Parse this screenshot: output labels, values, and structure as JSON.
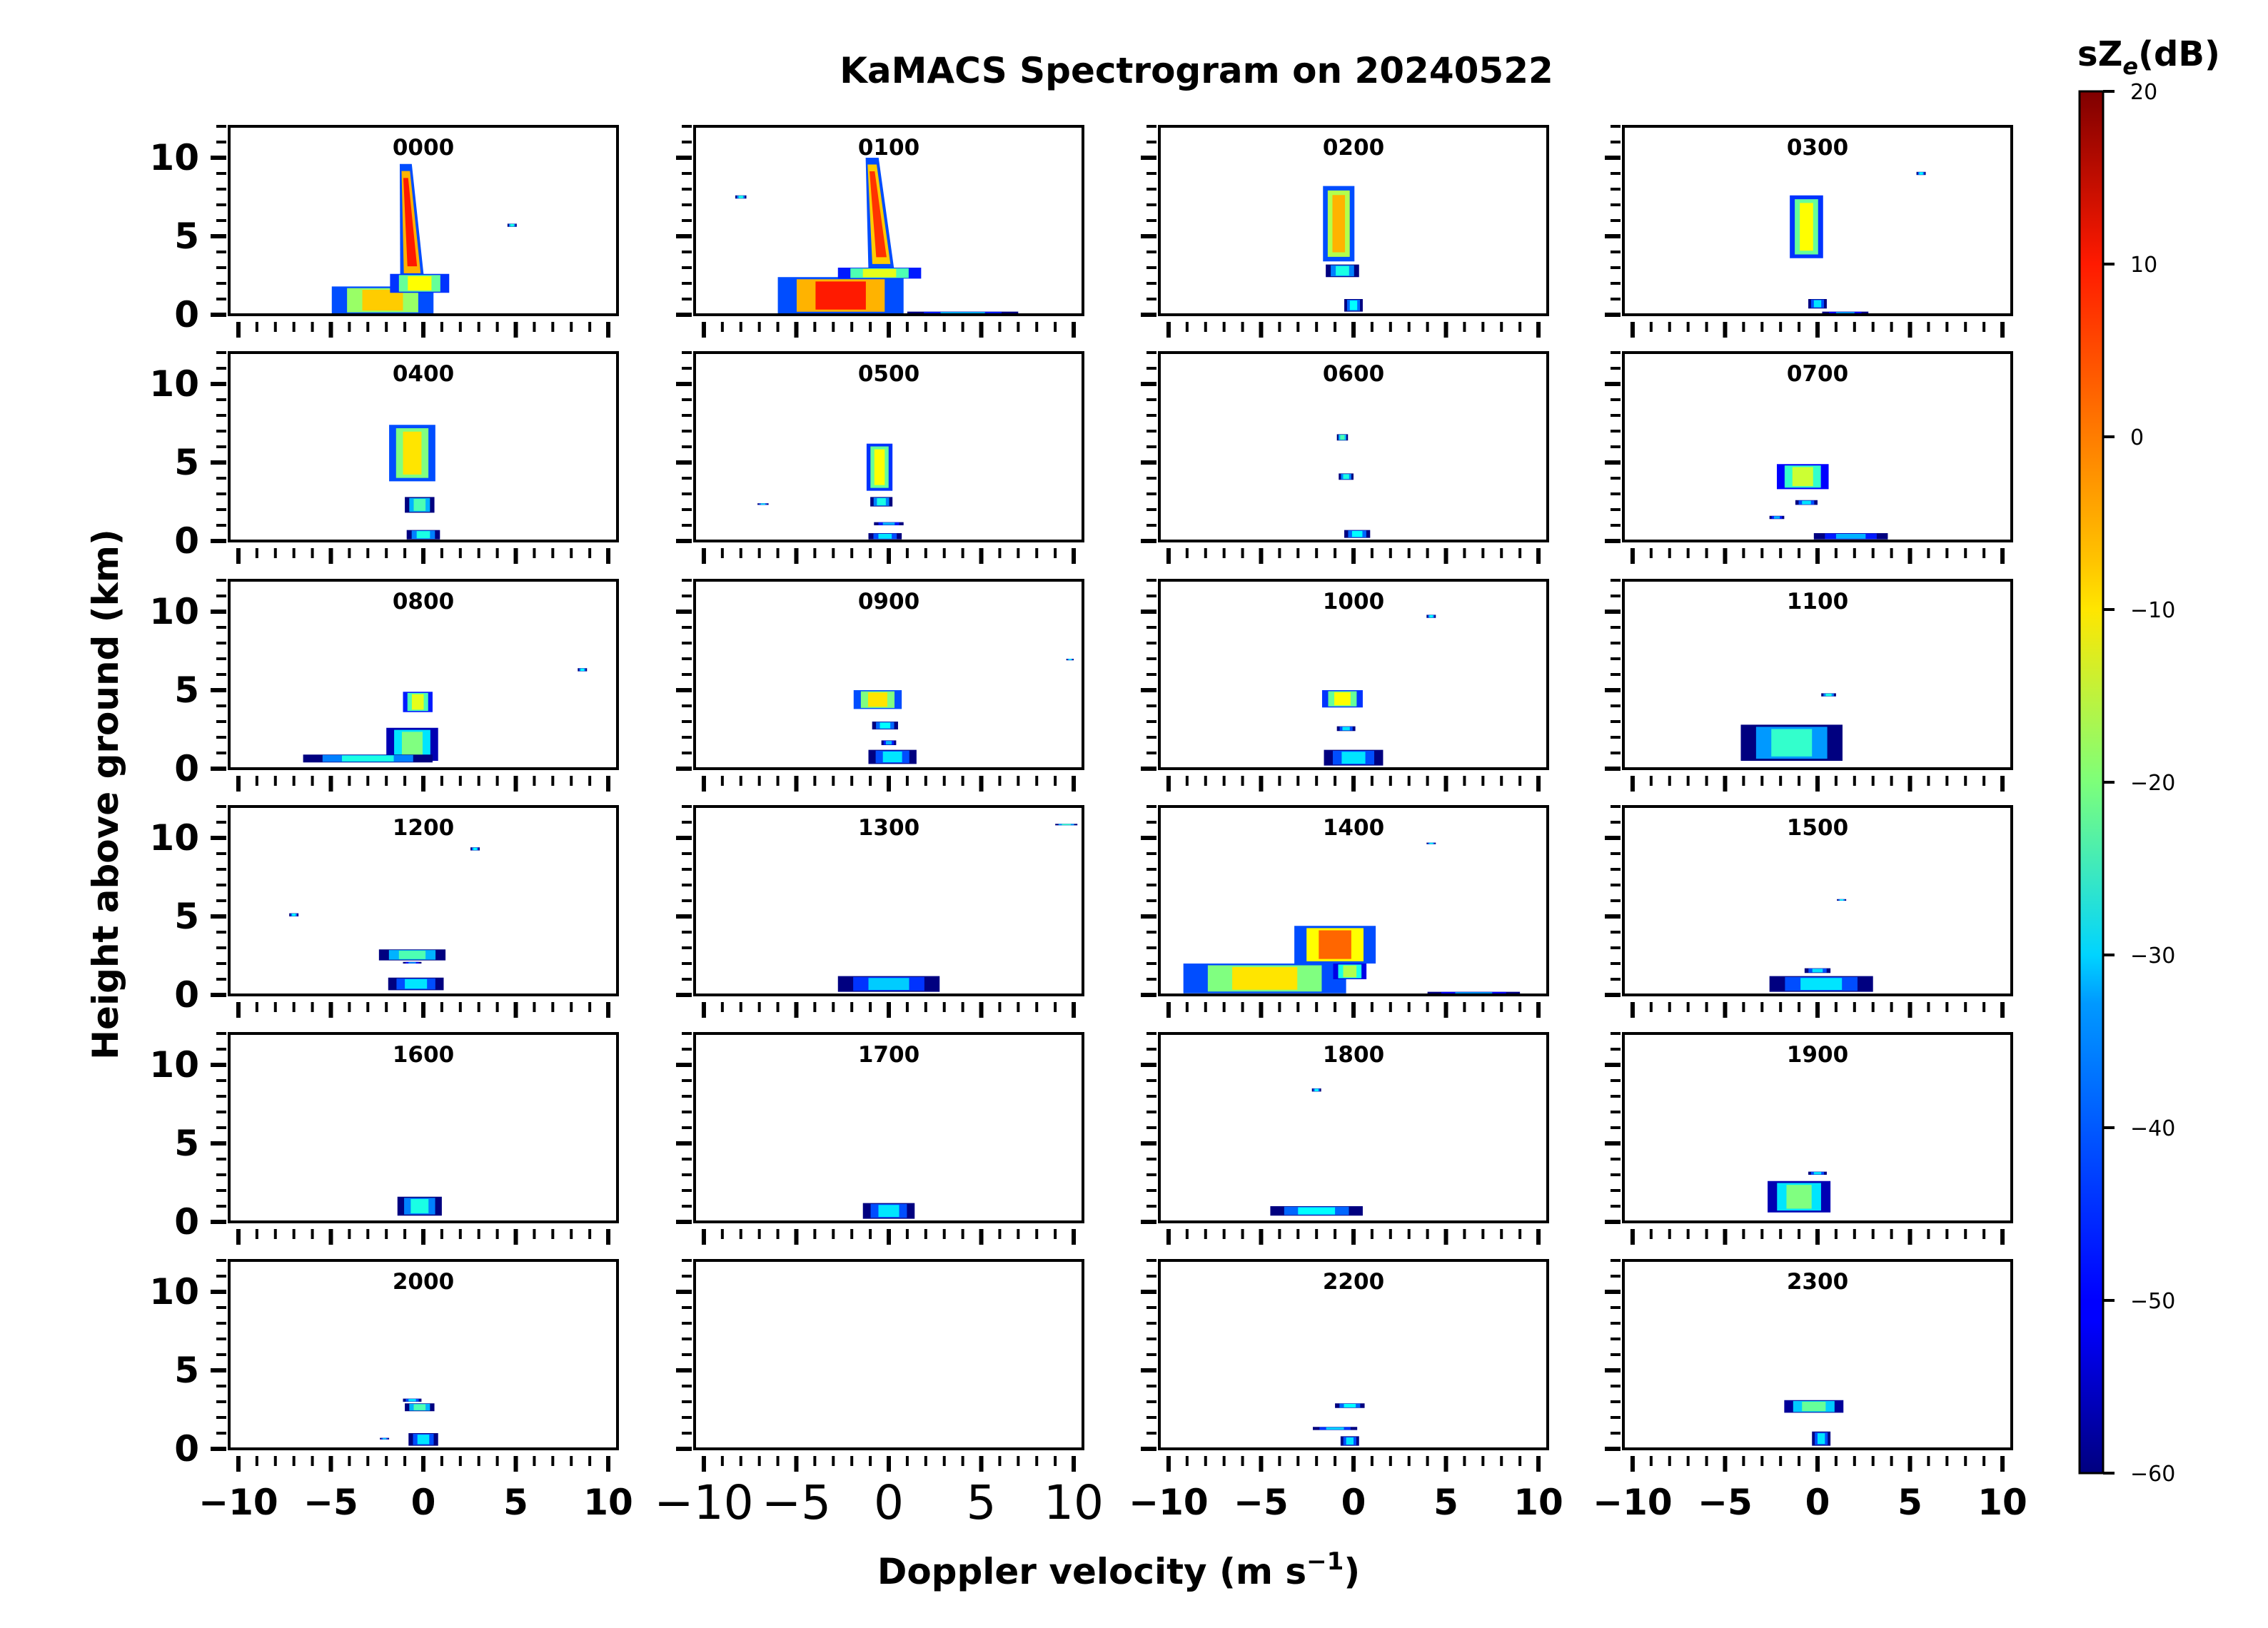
{
  "chart_data": {
    "type": "heatmap",
    "title": "KaMACS Spectrogram on 20240522",
    "xlabel": "Doppler velocity (m s",
    "xlabel_sup": "−1",
    "xlabel_close": ")",
    "ylabel": "Height above ground (km)",
    "xlim": [
      -10.5,
      10.5
    ],
    "ylim": [
      0,
      12
    ],
    "xticks": [
      -10,
      -5,
      0,
      5,
      10
    ],
    "xtick_labels": [
      "−10",
      "−5",
      "0",
      "5",
      "10"
    ],
    "yticks": [
      0,
      5,
      10
    ],
    "ytick_labels": [
      "0",
      "5",
      "10"
    ],
    "colorbar": {
      "label_main": "sZ",
      "label_sub": "e",
      "label_unit": "(dB)",
      "range": [
        -60,
        20
      ],
      "ticks": [
        20,
        10,
        0,
        -10,
        -20,
        -30,
        -40,
        -50,
        -60
      ],
      "tick_labels": [
        "20",
        "10",
        "0",
        "−10",
        "−20",
        "−30",
        "−40",
        "−50",
        "−60"
      ],
      "colormap": "jet"
    },
    "grid": false,
    "panels": [
      {
        "label": "0000",
        "blobs": [
          {
            "v": -0.6,
            "h0": 2.2,
            "h1": 9.6,
            "w": 1.3,
            "c": -4,
            "lean": -0.35
          },
          {
            "v": -2.2,
            "h0": 0.05,
            "h1": 1.8,
            "w": 5.5,
            "c": -18,
            "lean": 0
          },
          {
            "v": -0.2,
            "h0": 1.4,
            "h1": 2.6,
            "w": 3.2,
            "c": -22,
            "lean": 0
          },
          {
            "v": 4.8,
            "h0": 5.6,
            "h1": 5.8,
            "w": 0.5,
            "c": -40,
            "lean": 0
          }
        ]
      },
      {
        "label": "0100",
        "blobs": [
          {
            "v": -0.4,
            "h0": 2.8,
            "h1": 10.0,
            "w": 1.4,
            "c": -6,
            "lean": -0.5
          },
          {
            "v": -2.6,
            "h0": 0.05,
            "h1": 2.4,
            "w": 6.8,
            "c": -4,
            "lean": 0
          },
          {
            "v": -0.5,
            "h0": 2.3,
            "h1": 3.0,
            "w": 4.5,
            "c": -24,
            "lean": 0
          },
          {
            "v": -8.0,
            "h0": 7.4,
            "h1": 7.6,
            "w": 0.6,
            "c": -40,
            "lean": 0
          },
          {
            "v": 4.0,
            "h0": 0.0,
            "h1": 0.2,
            "w": 6.0,
            "c": -48,
            "lean": 0
          }
        ]
      },
      {
        "label": "0200",
        "blobs": [
          {
            "v": -0.8,
            "h0": 3.4,
            "h1": 8.2,
            "w": 1.7,
            "c": -16,
            "lean": 0
          },
          {
            "v": -0.6,
            "h0": 2.4,
            "h1": 3.2,
            "w": 1.8,
            "c": -40,
            "lean": 0
          },
          {
            "v": 0.0,
            "h0": 0.2,
            "h1": 1.0,
            "w": 1.0,
            "c": -42,
            "lean": 0
          }
        ]
      },
      {
        "label": "0300",
        "blobs": [
          {
            "v": -0.6,
            "h0": 3.6,
            "h1": 7.6,
            "w": 1.8,
            "c": -22,
            "lean": 0
          },
          {
            "v": 0.0,
            "h0": 0.4,
            "h1": 1.0,
            "w": 1.0,
            "c": -44,
            "lean": 0
          },
          {
            "v": 1.5,
            "h0": 0.0,
            "h1": 0.2,
            "w": 2.5,
            "c": -50,
            "lean": 0
          },
          {
            "v": 5.6,
            "h0": 8.9,
            "h1": 9.1,
            "w": 0.5,
            "c": -42,
            "lean": 0
          }
        ]
      },
      {
        "label": "0400",
        "blobs": [
          {
            "v": -0.6,
            "h0": 3.8,
            "h1": 7.4,
            "w": 2.5,
            "c": -20,
            "lean": 0
          },
          {
            "v": -0.2,
            "h0": 1.8,
            "h1": 2.8,
            "w": 1.6,
            "c": -36,
            "lean": 0
          },
          {
            "v": 0.0,
            "h0": 0.1,
            "h1": 0.7,
            "w": 1.8,
            "c": -40,
            "lean": 0
          }
        ]
      },
      {
        "label": "0500",
        "blobs": [
          {
            "v": -0.5,
            "h0": 3.2,
            "h1": 6.2,
            "w": 1.4,
            "c": -22,
            "lean": 0
          },
          {
            "v": -0.4,
            "h0": 2.2,
            "h1": 2.8,
            "w": 1.2,
            "c": -40,
            "lean": 0
          },
          {
            "v": 0.0,
            "h0": 1.0,
            "h1": 1.2,
            "w": 1.6,
            "c": -48,
            "lean": 0
          },
          {
            "v": -0.2,
            "h0": 0.1,
            "h1": 0.5,
            "w": 1.8,
            "c": -44,
            "lean": 0
          },
          {
            "v": -6.8,
            "h0": 2.3,
            "h1": 2.4,
            "w": 0.6,
            "c": -44,
            "lean": 0
          }
        ]
      },
      {
        "label": "0600",
        "blobs": [
          {
            "v": -0.6,
            "h0": 6.4,
            "h1": 6.8,
            "w": 0.6,
            "c": -36,
            "lean": 0
          },
          {
            "v": -0.4,
            "h0": 3.9,
            "h1": 4.3,
            "w": 0.8,
            "c": -40,
            "lean": 0
          },
          {
            "v": 0.2,
            "h0": 0.2,
            "h1": 0.7,
            "w": 1.4,
            "c": -42,
            "lean": 0
          }
        ]
      },
      {
        "label": "0700",
        "blobs": [
          {
            "v": -0.8,
            "h0": 3.3,
            "h1": 4.9,
            "w": 2.8,
            "c": -26,
            "lean": 0
          },
          {
            "v": -0.6,
            "h0": 2.3,
            "h1": 2.6,
            "w": 1.2,
            "c": -44,
            "lean": 0
          },
          {
            "v": -2.2,
            "h0": 1.4,
            "h1": 1.6,
            "w": 0.8,
            "c": -48,
            "lean": 0
          },
          {
            "v": 1.8,
            "h0": 0.1,
            "h1": 0.5,
            "w": 4.0,
            "c": -48,
            "lean": 0
          }
        ]
      },
      {
        "label": "0800",
        "blobs": [
          {
            "v": -0.3,
            "h0": 3.6,
            "h1": 4.9,
            "w": 1.6,
            "c": -24,
            "lean": 0
          },
          {
            "v": -0.6,
            "h0": 0.5,
            "h1": 2.6,
            "w": 2.8,
            "c": -32,
            "lean": 0
          },
          {
            "v": -3.0,
            "h0": 0.4,
            "h1": 0.9,
            "w": 7.0,
            "c": -40,
            "lean": 0
          },
          {
            "v": 8.6,
            "h0": 6.2,
            "h1": 6.4,
            "w": 0.5,
            "c": -42,
            "lean": 0
          }
        ]
      },
      {
        "label": "0900",
        "blobs": [
          {
            "v": -0.6,
            "h0": 3.8,
            "h1": 5.0,
            "w": 2.6,
            "c": -20,
            "lean": 0
          },
          {
            "v": -0.2,
            "h0": 2.5,
            "h1": 3.0,
            "w": 1.4,
            "c": -42,
            "lean": 0
          },
          {
            "v": 0.0,
            "h0": 1.5,
            "h1": 1.8,
            "w": 0.8,
            "c": -48,
            "lean": 0
          },
          {
            "v": 0.2,
            "h0": 0.3,
            "h1": 1.2,
            "w": 2.6,
            "c": -44,
            "lean": 0
          },
          {
            "v": 9.8,
            "h0": 6.9,
            "h1": 7.0,
            "w": 0.4,
            "c": -42,
            "lean": 0
          }
        ]
      },
      {
        "label": "1000",
        "blobs": [
          {
            "v": -0.6,
            "h0": 3.9,
            "h1": 5.0,
            "w": 2.2,
            "c": -22,
            "lean": 0
          },
          {
            "v": -0.4,
            "h0": 2.4,
            "h1": 2.7,
            "w": 1.0,
            "c": -44,
            "lean": 0
          },
          {
            "v": 0.0,
            "h0": 0.2,
            "h1": 1.2,
            "w": 3.2,
            "c": -44,
            "lean": 0
          },
          {
            "v": 4.2,
            "h0": 9.6,
            "h1": 9.8,
            "w": 0.5,
            "c": -42,
            "lean": 0
          }
        ]
      },
      {
        "label": "1100",
        "blobs": [
          {
            "v": -1.4,
            "h0": 0.5,
            "h1": 2.8,
            "w": 5.5,
            "c": -38,
            "lean": 0
          },
          {
            "v": 0.6,
            "h0": 4.6,
            "h1": 4.8,
            "w": 0.8,
            "c": -40,
            "lean": 0
          }
        ]
      },
      {
        "label": "1200",
        "blobs": [
          {
            "v": -0.6,
            "h0": 2.2,
            "h1": 2.9,
            "w": 3.6,
            "c": -36,
            "lean": 0
          },
          {
            "v": -0.4,
            "h0": 0.3,
            "h1": 1.1,
            "w": 3.0,
            "c": -44,
            "lean": 0
          },
          {
            "v": -7.0,
            "h0": 5.0,
            "h1": 5.2,
            "w": 0.5,
            "c": -42,
            "lean": 0
          },
          {
            "v": 2.8,
            "h0": 9.2,
            "h1": 9.4,
            "w": 0.5,
            "c": -42,
            "lean": 0
          },
          {
            "v": -0.6,
            "h0": 2.0,
            "h1": 2.1,
            "w": 1.0,
            "c": -50,
            "lean": 0
          }
        ]
      },
      {
        "label": "1300",
        "blobs": [
          {
            "v": 0.0,
            "h0": 0.2,
            "h1": 1.2,
            "w": 5.5,
            "c": -46,
            "lean": 0
          },
          {
            "v": 9.6,
            "h0": 10.8,
            "h1": 10.9,
            "w": 1.2,
            "c": -38,
            "lean": 0
          }
        ]
      },
      {
        "label": "1400",
        "blobs": [
          {
            "v": -4.8,
            "h0": 0.1,
            "h1": 2.0,
            "w": 8.8,
            "c": -20,
            "lean": 0
          },
          {
            "v": -1.0,
            "h0": 2.0,
            "h1": 4.4,
            "w": 4.4,
            "c": -10,
            "lean": 0
          },
          {
            "v": -0.2,
            "h0": 1.0,
            "h1": 2.0,
            "w": 1.8,
            "c": -28,
            "lean": 0
          },
          {
            "v": 4.2,
            "h0": 9.6,
            "h1": 9.7,
            "w": 0.5,
            "c": -42,
            "lean": 0
          },
          {
            "v": 6.5,
            "h0": 0.0,
            "h1": 0.2,
            "w": 5.0,
            "c": -50,
            "lean": 0
          }
        ]
      },
      {
        "label": "1500",
        "blobs": [
          {
            "v": 0.0,
            "h0": 1.4,
            "h1": 1.7,
            "w": 1.4,
            "c": -44,
            "lean": 0
          },
          {
            "v": 0.2,
            "h0": 0.2,
            "h1": 1.2,
            "w": 5.6,
            "c": -44,
            "lean": 0
          },
          {
            "v": 1.3,
            "h0": 6.0,
            "h1": 6.1,
            "w": 0.5,
            "c": -42,
            "lean": 0
          }
        ]
      },
      {
        "label": "1600",
        "blobs": [
          {
            "v": -0.2,
            "h0": 0.4,
            "h1": 1.6,
            "w": 2.4,
            "c": -40,
            "lean": 0
          }
        ]
      },
      {
        "label": "1700",
        "blobs": [
          {
            "v": 0.0,
            "h0": 0.2,
            "h1": 1.2,
            "w": 2.8,
            "c": -44,
            "lean": 0
          }
        ]
      },
      {
        "label": "1800",
        "blobs": [
          {
            "v": -2.0,
            "h0": 0.4,
            "h1": 1.0,
            "w": 5.0,
            "c": -42,
            "lean": 0
          },
          {
            "v": -2.0,
            "h0": 8.3,
            "h1": 8.5,
            "w": 0.5,
            "c": -42,
            "lean": 0
          }
        ]
      },
      {
        "label": "1900",
        "blobs": [
          {
            "v": -1.0,
            "h0": 0.6,
            "h1": 2.6,
            "w": 3.4,
            "c": -32,
            "lean": 0
          },
          {
            "v": 0.0,
            "h0": 3.0,
            "h1": 3.2,
            "w": 1.0,
            "c": -44,
            "lean": 0
          }
        ]
      },
      {
        "label": "2000",
        "blobs": [
          {
            "v": -0.2,
            "h0": 2.4,
            "h1": 2.9,
            "w": 1.6,
            "c": -36,
            "lean": 0
          },
          {
            "v": -0.6,
            "h0": 3.0,
            "h1": 3.2,
            "w": 1.0,
            "c": -44,
            "lean": 0
          },
          {
            "v": 0.0,
            "h0": 0.2,
            "h1": 1.0,
            "w": 1.6,
            "c": -44,
            "lean": 0
          },
          {
            "v": -2.1,
            "h0": 0.6,
            "h1": 0.7,
            "w": 0.5,
            "c": -46,
            "lean": 0
          }
        ]
      },
      {
        "label": "",
        "blobs": []
      },
      {
        "label": "2200",
        "blobs": [
          {
            "v": -0.2,
            "h0": 2.6,
            "h1": 2.9,
            "w": 1.6,
            "c": -42,
            "lean": 0
          },
          {
            "v": -1.0,
            "h0": 1.2,
            "h1": 1.4,
            "w": 2.4,
            "c": -46,
            "lean": 0
          },
          {
            "v": -0.2,
            "h0": 0.2,
            "h1": 0.8,
            "w": 1.0,
            "c": -44,
            "lean": 0
          }
        ]
      },
      {
        "label": "2300",
        "blobs": [
          {
            "v": -0.2,
            "h0": 2.3,
            "h1": 3.1,
            "w": 3.2,
            "c": -34,
            "lean": 0
          },
          {
            "v": 0.2,
            "h0": 0.2,
            "h1": 1.1,
            "w": 1.0,
            "c": -44,
            "lean": 0
          }
        ]
      }
    ]
  }
}
